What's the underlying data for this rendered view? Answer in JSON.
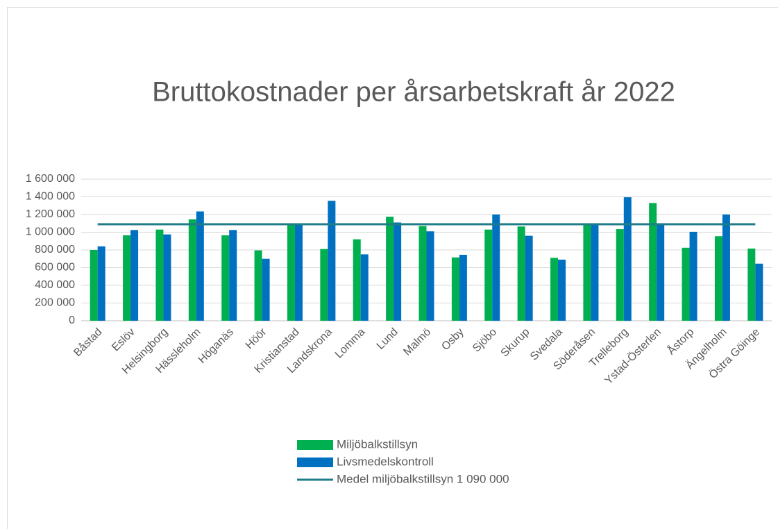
{
  "chart_data": {
    "type": "bar",
    "title": "Bruttokostnader per årsarbetskraft år 2022",
    "categories": [
      "Båstad",
      "Eslöv",
      "Helsingborg",
      "Hässleholm",
      "Höganäs",
      "Höör",
      "Kristianstad",
      "Landskrona",
      "Lomma",
      "Lund",
      "Malmö",
      "Osby",
      "Sjöbo",
      "Skurup",
      "Svedala",
      "Söderåsen",
      "Trelleborg",
      "Ystad-Österlen",
      "Åstorp",
      "Ängelholm",
      "Östra Göinge"
    ],
    "series": [
      {
        "name": "Miljöbalkstillsyn",
        "color": "#00b050",
        "values": [
          800000,
          965000,
          1030000,
          1145000,
          965000,
          795000,
          1100000,
          810000,
          920000,
          1175000,
          1070000,
          715000,
          1030000,
          1065000,
          710000,
          1080000,
          1035000,
          1330000,
          825000,
          955000,
          815000
        ]
      },
      {
        "name": "Livsmedelskontroll",
        "color": "#0070c0",
        "values": [
          840000,
          1025000,
          975000,
          1235000,
          1025000,
          700000,
          1090000,
          1355000,
          750000,
          1110000,
          1010000,
          745000,
          1200000,
          960000,
          690000,
          1090000,
          1395000,
          1095000,
          1005000,
          1200000,
          645000
        ]
      }
    ],
    "reference_line": {
      "name": "Medel miljöbalkstillsyn 1 090 000",
      "value": 1090000,
      "color": "#1f7d8a"
    },
    "ylim": [
      0,
      1600000
    ],
    "yticks": [
      0,
      {
        "value": 200000,
        "label": "200 000"
      },
      {
        "value": 400000,
        "label": "400 000"
      },
      {
        "value": 600000,
        "label": "600 000"
      },
      {
        "value": 800000,
        "label": "800 000"
      },
      {
        "value": 1000000,
        "label": "1 000 000"
      },
      {
        "value": 1200000,
        "label": "1 200 000"
      },
      {
        "value": 1400000,
        "label": "1 400 000"
      },
      {
        "value": 1600000,
        "label": "1 600 000"
      }
    ],
    "grid": true,
    "legend": "bottom"
  }
}
